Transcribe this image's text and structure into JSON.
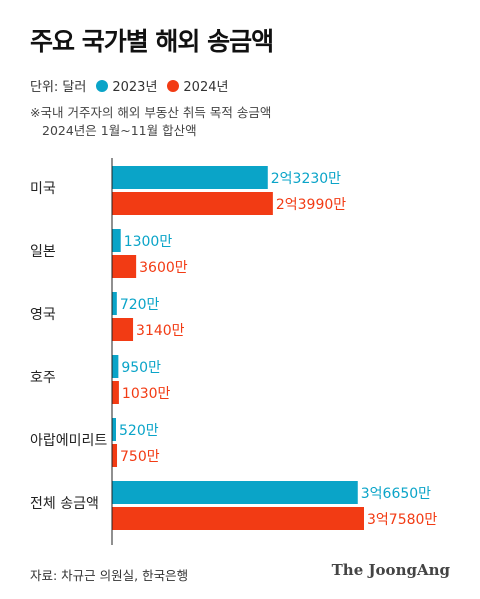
{
  "header": {
    "title": "주요 국가별 해외 송금액",
    "unit": "단위: 달러",
    "note_line1": "※국내 거주자의 해외 부동산 취득 목적 송금액",
    "note_line2": "2024년은 1월~11월 합산액"
  },
  "footer": {
    "source": "자료: 차규근 의원실, 한국은행",
    "logo": "The JoongAng"
  },
  "colors": {
    "series2023": "#0aa4c8",
    "series2024": "#f23b14"
  },
  "chart_data": {
    "type": "bar",
    "orientation": "horizontal",
    "unit": "달러",
    "categories": [
      "미국",
      "일본",
      "영국",
      "호주",
      "아랍에미리트",
      "전체 송금액"
    ],
    "series": [
      {
        "name": "2023년",
        "values": [
          232300000,
          13000000,
          7200000,
          9500000,
          5200000,
          366500000
        ],
        "labels": [
          "2억3230만",
          "1300만",
          "720만",
          "950만",
          "520만",
          "3억6650만"
        ]
      },
      {
        "name": "2024년",
        "values": [
          239900000,
          36000000,
          31400000,
          10300000,
          7500000,
          375800000
        ],
        "labels": [
          "2억3990만",
          "3600만",
          "3140만",
          "1030만",
          "750만",
          "3억7580만"
        ]
      }
    ]
  }
}
